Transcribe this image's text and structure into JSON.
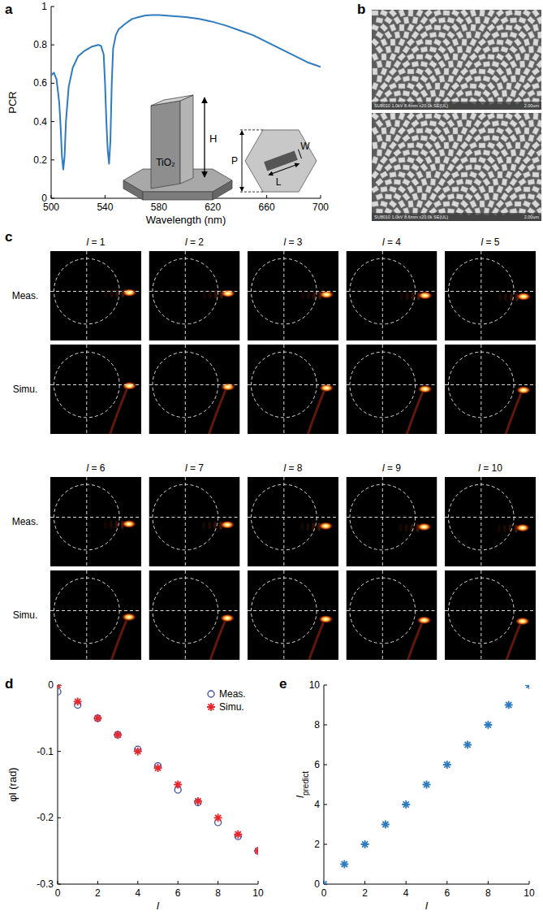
{
  "panel_labels": [
    "a",
    "b",
    "c",
    "d",
    "e"
  ],
  "chart_data": [
    {
      "type": "line",
      "x": [
        500,
        502,
        504,
        506,
        507,
        508,
        509,
        510,
        511,
        513,
        516,
        520,
        525,
        530,
        535,
        537,
        539,
        540,
        541,
        542,
        543,
        544,
        545,
        546,
        548,
        550,
        555,
        560,
        565,
        570,
        575,
        580,
        590,
        600,
        610,
        620,
        630,
        640,
        650,
        660,
        670,
        680,
        690,
        700
      ],
      "values": [
        0.64,
        0.655,
        0.62,
        0.5,
        0.38,
        0.22,
        0.15,
        0.22,
        0.4,
        0.58,
        0.68,
        0.74,
        0.77,
        0.79,
        0.8,
        0.795,
        0.75,
        0.6,
        0.4,
        0.25,
        0.18,
        0.3,
        0.6,
        0.78,
        0.85,
        0.88,
        0.91,
        0.935,
        0.945,
        0.953,
        0.956,
        0.955,
        0.95,
        0.945,
        0.935,
        0.92,
        0.9,
        0.875,
        0.85,
        0.815,
        0.78,
        0.745,
        0.71,
        0.685
      ],
      "color": "#2f7bc0",
      "x_label": "Wavelength (nm)",
      "y_label": "PCR",
      "xlim": [
        500,
        700
      ],
      "xticks": [
        500,
        540,
        580,
        620,
        660,
        700
      ],
      "ylim": [
        0,
        1
      ],
      "yticks": [
        0,
        0.2,
        0.4,
        0.6,
        0.8,
        1
      ]
    },
    {
      "type": "scatter",
      "x": [
        0,
        1,
        2,
        3,
        4,
        5,
        6,
        7,
        8,
        9,
        10
      ],
      "series": [
        {
          "name": "Meas.",
          "color": "#3b4ba6",
          "marker": "circle",
          "values": [
            -0.01,
            -0.03,
            -0.05,
            -0.075,
            -0.097,
            -0.122,
            -0.158,
            -0.177,
            -0.207,
            -0.228,
            -0.25
          ]
        },
        {
          "name": "Simu.",
          "color": "#e8262b",
          "marker": "star",
          "values": [
            0,
            -0.025,
            -0.05,
            -0.075,
            -0.1,
            -0.125,
            -0.15,
            -0.175,
            -0.2,
            -0.225,
            -0.25
          ]
        }
      ],
      "x_label": "l",
      "y_label": "φl (rad)",
      "xlim": [
        0,
        10
      ],
      "xticks": [
        0,
        2,
        4,
        6,
        8,
        10
      ],
      "ylim": [
        -0.3,
        0
      ],
      "yticks": [
        -0.3,
        -0.2,
        -0.1,
        0
      ],
      "legend": "top-right"
    },
    {
      "type": "scatter",
      "x": [
        0,
        1,
        2,
        3,
        4,
        5,
        6,
        7,
        8,
        9,
        10
      ],
      "values": [
        0,
        1,
        2,
        3,
        4,
        5,
        6,
        7,
        8,
        9,
        10
      ],
      "color": "#2f7bc0",
      "marker": "star",
      "x_label": "l",
      "y_label": "lpredict",
      "xlim": [
        0,
        10
      ],
      "xticks": [
        0,
        2,
        4,
        6,
        8,
        10
      ],
      "ylim": [
        0,
        10
      ],
      "yticks": [
        0,
        2,
        4,
        6,
        8,
        10
      ]
    }
  ],
  "inset": {
    "material": "TiO₂",
    "labels": [
      "H",
      "P",
      "W",
      "L"
    ]
  },
  "sem_images": [
    {
      "info": "SU8010 1.0kV 8.4mm x20.0k SE(UL)",
      "scale": "2.00um"
    },
    {
      "info": "SU8010 1.0kV 8.6mm x20.0k SE(UL)",
      "scale": "2.00um"
    }
  ],
  "beam_images": {
    "titles": [
      "l = 1",
      "l = 2",
      "l = 3",
      "l = 4",
      "l = 5",
      "l = 6",
      "l = 7",
      "l = 8",
      "l = 9",
      "l = 10"
    ],
    "rows": [
      "Meas.",
      "Simu."
    ]
  }
}
